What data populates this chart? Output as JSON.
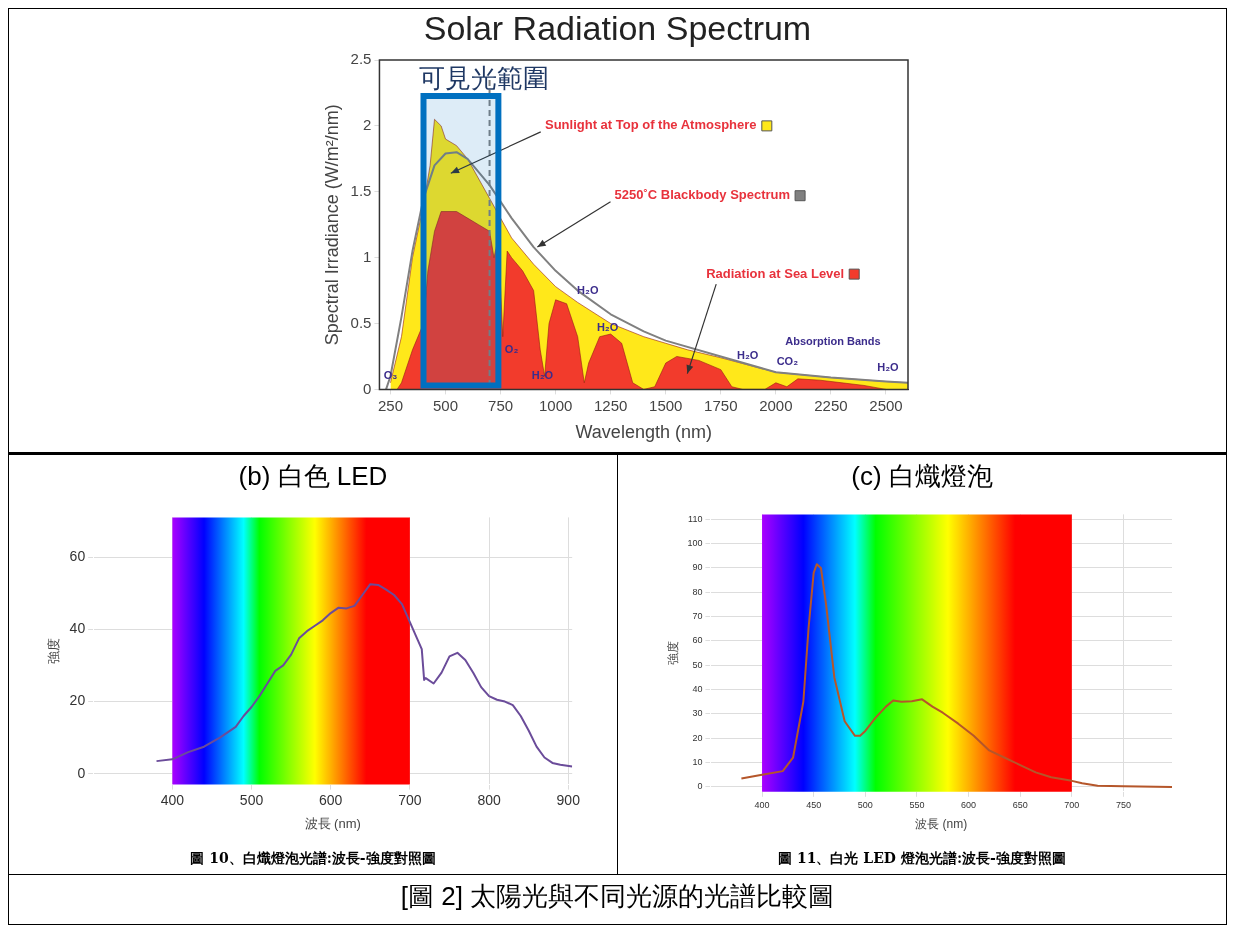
{
  "chart_data": [
    {
      "type": "area",
      "title": "Solar Radiation Spectrum",
      "xlabel": "Wavelength (nm)",
      "ylabel": "Spectral Irradiance (W/m²/nm)",
      "xlim": [
        200,
        2600
      ],
      "xticks": [
        250,
        500,
        750,
        1000,
        1250,
        1500,
        1750,
        2000,
        2250,
        2500
      ],
      "ylim": [
        0,
        2.5
      ],
      "yticks": [
        0,
        0.5,
        1,
        1.5,
        2,
        2.5
      ],
      "grid": false,
      "legend": "top right",
      "marker": "none",
      "series": [
        {
          "name": "Sunlight at Top of the Atmosphere",
          "color": "#ffe81a",
          "x": [
            250,
            300,
            350,
            400,
            430,
            450,
            480,
            500,
            550,
            600,
            700,
            750,
            800,
            900,
            1000,
            1100,
            1250,
            1400,
            1500,
            1600,
            1750,
            2000,
            2250,
            2500,
            2600
          ],
          "values": [
            0.05,
            0.4,
            1.0,
            1.4,
            1.7,
            2.05,
            2.0,
            1.9,
            1.85,
            1.75,
            1.45,
            1.3,
            1.15,
            0.95,
            0.78,
            0.66,
            0.5,
            0.4,
            0.35,
            0.3,
            0.24,
            0.13,
            0.09,
            0.06,
            0.05
          ]
        },
        {
          "name": "Radiation at Sea Level",
          "color": "#f23b2c",
          "x": [
            280,
            300,
            350,
            400,
            420,
            450,
            480,
            550,
            600,
            650,
            700,
            720,
            740,
            760,
            780,
            800,
            850,
            900,
            930,
            950,
            970,
            1000,
            1050,
            1100,
            1130,
            1150,
            1200,
            1250,
            1300,
            1350,
            1400,
            1450,
            1500,
            1550,
            1650,
            1750,
            1800,
            1850,
            1950,
            2000,
            2050,
            2100,
            2200,
            2300,
            2400,
            2500
          ],
          "values": [
            0,
            0.05,
            0.3,
            0.5,
            0.9,
            1.2,
            1.35,
            1.35,
            1.3,
            1.25,
            1.2,
            1.0,
            1.15,
            0.4,
            1.05,
            1.0,
            0.9,
            0.75,
            0.3,
            0.1,
            0.5,
            0.68,
            0.65,
            0.4,
            0.05,
            0.2,
            0.4,
            0.42,
            0.35,
            0.05,
            0,
            0.02,
            0.2,
            0.25,
            0.22,
            0.15,
            0.02,
            0,
            0,
            0.05,
            0.02,
            0.08,
            0.07,
            0.05,
            0.03,
            0
          ]
        },
        {
          "name": "5250˚C Blackbody Spectrum",
          "type": "line",
          "color": "#808080",
          "x": [
            230,
            250,
            300,
            350,
            400,
            450,
            500,
            550,
            600,
            700,
            800,
            900,
            1000,
            1100,
            1250,
            1400,
            1500,
            1750,
            2000,
            2250,
            2500,
            2600
          ],
          "values": [
            0,
            0.1,
            0.55,
            1.05,
            1.45,
            1.7,
            1.79,
            1.8,
            1.75,
            1.55,
            1.3,
            1.08,
            0.9,
            0.75,
            0.57,
            0.44,
            0.37,
            0.25,
            0.13,
            0.09,
            0.06,
            0.05
          ]
        }
      ],
      "bands": [
        {
          "axis": "x",
          "from": 400,
          "to": 740,
          "label": "可見光範圍",
          "color": "#0070c0"
        }
      ],
      "ref_lines": [
        {
          "axis": "x",
          "value": 700,
          "color": "#808080",
          "line_style": "dashed"
        }
      ],
      "annotations": [
        {
          "text": "O₃",
          "x": 250,
          "y": 0.1
        },
        {
          "text": "H₂O",
          "x": 940,
          "y": 0.1
        },
        {
          "text": "H₂O",
          "x": 1146,
          "y": 0.745
        },
        {
          "text": "H₂O",
          "x": 1236,
          "y": 0.47
        },
        "O₂",
        "H₂O",
        "CO₂",
        "H₂O",
        "Absorption Bands",
        "[圖 2] 太陽光與不同光源的光譜比較圖"
      ]
    },
    {
      "type": "line",
      "title": "(b) 白色 LED",
      "xlabel": "波長 (nm)",
      "ylabel": "強度",
      "xlim": [
        300,
        905
      ],
      "xticks": [
        400,
        500,
        600,
        700,
        800,
        900
      ],
      "ylim": [
        -3,
        71
      ],
      "yticks": [
        0,
        20,
        40,
        60
      ],
      "grid": true,
      "marker": "none",
      "series": [
        {
          "color": "#6b4c9a",
          "x": [
            380,
            400,
            420,
            440,
            460,
            480,
            490,
            500,
            510,
            520,
            530,
            540,
            550,
            560,
            570,
            580,
            590,
            600,
            610,
            620,
            630,
            640,
            650,
            660,
            670,
            680,
            690,
            700,
            710,
            715,
            718,
            720,
            730,
            740,
            750,
            760,
            770,
            780,
            790,
            800,
            810,
            820,
            830,
            840,
            850,
            860,
            870,
            880,
            890,
            905
          ],
          "values": [
            3.5,
            4,
            6,
            7.5,
            10,
            13,
            16,
            18.5,
            21.5,
            25,
            28.5,
            30,
            33,
            37.5,
            39.5,
            41,
            42.5,
            44.5,
            46,
            45.8,
            46.5,
            49.5,
            52.5,
            52.3,
            51,
            49.5,
            47,
            42,
            37,
            34.5,
            26,
            26.5,
            25,
            28,
            32.5,
            33.5,
            31.5,
            28,
            24,
            21.5,
            20.5,
            20,
            19,
            16,
            12,
            7.5,
            4.5,
            3,
            2.5,
            2
          ]
        }
      ],
      "bands": [
        {
          "axis": "x",
          "from": 400,
          "to": 700
        }
      ],
      "annotations": [
        "圖 10、白熾燈泡光譜:波長-強度對照圖"
      ]
    },
    {
      "type": "line",
      "title": "(c) 白熾燈泡",
      "xlabel": "波長 (nm)",
      "ylabel": "強度",
      "xlim": [
        350,
        797
      ],
      "xticks": [
        400,
        450,
        500,
        550,
        600,
        650,
        700,
        750
      ],
      "ylim": [
        -2,
        112
      ],
      "yticks": [
        0,
        10,
        20,
        30,
        40,
        50,
        60,
        70,
        80,
        90,
        100,
        110
      ],
      "grid": true,
      "marker": "none",
      "series": [
        {
          "color": "#b5562a",
          "x": [
            380,
            400,
            420,
            430,
            440,
            445,
            450,
            453,
            457,
            462,
            470,
            480,
            490,
            495,
            500,
            510,
            520,
            527,
            535,
            545,
            555,
            565,
            575,
            590,
            605,
            620,
            635,
            650,
            665,
            680,
            700,
            710,
            725,
            750,
            797
          ],
          "values": [
            3.5,
            5,
            6.5,
            12,
            35,
            65,
            88,
            91.5,
            90,
            75,
            45,
            27,
            21,
            21,
            23,
            28.5,
            33,
            35.5,
            35,
            35.2,
            36,
            33,
            30.5,
            26,
            21,
            15,
            12,
            9,
            6,
            4,
            2.5,
            1.5,
            0.5,
            0.3,
            0
          ]
        }
      ],
      "bands": [
        {
          "axis": "x",
          "from": 400,
          "to": 700
        }
      ],
      "annotations": [
        "圖 11、白光 LED 燈泡光譜:波長-強度對照圖"
      ]
    }
  ]
}
